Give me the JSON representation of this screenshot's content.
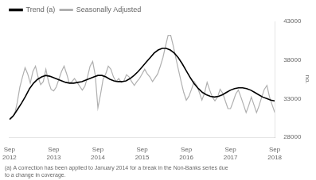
{
  "chart_data": {
    "type": "line",
    "ylabel": "no.",
    "annotations": [
      "(a) A correction has been applied to January 2014 for a break in the Non-Banks series due\nto a change in coverage."
    ],
    "series": [
      {
        "name": "Trend (a)",
        "color": "#000000",
        "x": [
          2012.667,
          2012.7579,
          2012.8488,
          2012.9397,
          2013.0306,
          2013.1215,
          2013.2125,
          2013.3034,
          2013.3943,
          2013.4852,
          2013.5761,
          2013.667,
          2013.7579,
          2013.8488,
          2013.9397,
          2014.0306,
          2014.1215,
          2014.2125,
          2014.3034,
          2014.3943,
          2014.4852,
          2014.5761,
          2014.667,
          2014.7579,
          2014.8488,
          2014.9397,
          2015.0306,
          2015.1215,
          2015.2125,
          2015.3034,
          2015.3943,
          2015.4852,
          2015.5761,
          2015.667,
          2015.7579,
          2015.8488,
          2015.9397,
          2016.0306,
          2016.1215,
          2016.2125,
          2016.3034,
          2016.3943,
          2016.4852,
          2016.5761,
          2016.667,
          2016.7579,
          2016.8488,
          2016.9397,
          2017.0306,
          2017.1215,
          2017.2125,
          2017.3034,
          2017.3943,
          2017.4852,
          2017.5761,
          2017.667,
          2017.7579,
          2017.8488,
          2017.9397,
          2018.0306,
          2018.1215,
          2018.2125,
          2018.3034,
          2018.3943,
          2018.4852,
          2018.5761,
          2018.667
        ],
        "values": [
          30300,
          30800,
          31600,
          32400,
          33300,
          34300,
          35000,
          35500,
          35800,
          36000,
          35900,
          35700,
          35500,
          35300,
          35100,
          35000,
          35000,
          35100,
          35200,
          35400,
          35600,
          35800,
          36000,
          36000,
          35800,
          35500,
          35300,
          35200,
          35200,
          35300,
          35600,
          36000,
          36500,
          37100,
          37700,
          38300,
          38900,
          39300,
          39500,
          39500,
          39300,
          38900,
          38300,
          37500,
          36600,
          35700,
          34900,
          34300,
          33800,
          33500,
          33300,
          33200,
          33300,
          33500,
          33800,
          34100,
          34300,
          34400,
          34400,
          34300,
          34100,
          33800,
          33500,
          33200,
          33000,
          32800,
          32700
        ]
      },
      {
        "name": "Seasonally Adjusted",
        "color": "#b0b0b0",
        "x": [
          2012.667,
          2012.7258,
          2012.7846,
          2012.8435,
          2012.9023,
          2012.9611,
          2013.0199,
          2013.0788,
          2013.1376,
          2013.1964,
          2013.2552,
          2013.3141,
          2013.3729,
          2013.4317,
          2013.4905,
          2013.5494,
          2013.6082,
          2013.667,
          2013.7258,
          2013.7846,
          2013.8435,
          2013.9023,
          2013.9611,
          2014.0199,
          2014.0788,
          2014.1376,
          2014.1964,
          2014.2552,
          2014.3141,
          2014.3729,
          2014.4317,
          2014.4905,
          2014.5494,
          2014.6082,
          2014.667,
          2014.7258,
          2014.7846,
          2014.8435,
          2014.9023,
          2014.9611,
          2015.0199,
          2015.0788,
          2015.1376,
          2015.1964,
          2015.2552,
          2015.3141,
          2015.3729,
          2015.4317,
          2015.4905,
          2015.5494,
          2015.6082,
          2015.667,
          2015.7258,
          2015.7846,
          2015.8435,
          2015.9023,
          2015.9611,
          2016.0199,
          2016.0788,
          2016.1376,
          2016.1964,
          2016.2552,
          2016.3141,
          2016.3729,
          2016.4317,
          2016.4905,
          2016.5494,
          2016.6082,
          2016.667,
          2016.7258,
          2016.7846,
          2016.8435,
          2016.9023,
          2016.9611,
          2017.0199,
          2017.0788,
          2017.1376,
          2017.1964,
          2017.2552,
          2017.3141,
          2017.3729,
          2017.4317,
          2017.4905,
          2017.5494,
          2017.6082,
          2017.667,
          2017.7258,
          2017.7846,
          2017.8435,
          2017.9023,
          2017.9611,
          2018.0199,
          2018.0788,
          2018.1376,
          2018.1964,
          2018.2552,
          2018.3141,
          2018.3729,
          2018.4317,
          2018.4905,
          2018.5494,
          2018.6082,
          2018.667
        ],
        "values": [
          30300,
          30500,
          31000,
          32500,
          34500,
          35800,
          37000,
          36200,
          35000,
          36500,
          37200,
          35800,
          34800,
          35200,
          36800,
          35200,
          34200,
          34000,
          34500,
          35500,
          36500,
          37200,
          36200,
          35000,
          35200,
          35600,
          35100,
          34600,
          34100,
          34600,
          35800,
          37200,
          37800,
          36000,
          31800,
          33500,
          35500,
          36200,
          37200,
          36800,
          35800,
          35200,
          35600,
          35100,
          35300,
          36100,
          35800,
          35200,
          34700,
          35200,
          35600,
          36200,
          36800,
          36200,
          35800,
          35200,
          35700,
          36200,
          37200,
          38300,
          39800,
          41200,
          41200,
          39800,
          38200,
          36700,
          35200,
          33800,
          32800,
          33300,
          34200,
          35200,
          34700,
          33800,
          32800,
          33700,
          35100,
          34100,
          33200,
          32700,
          33200,
          34200,
          33700,
          32700,
          31700,
          31700,
          32600,
          33600,
          34100,
          33200,
          32200,
          31200,
          32100,
          33200,
          32200,
          31200,
          32100,
          33200,
          34200,
          34700,
          33200,
          32200,
          31200
        ]
      }
    ],
    "xlim": [
      2012.667,
      2018.667
    ],
    "xticks": [
      {
        "value": 2012.667,
        "label": "Sep\n2012"
      },
      {
        "value": 2013.667,
        "label": "Sep\n2013"
      },
      {
        "value": 2014.667,
        "label": "Sep\n2014"
      },
      {
        "value": 2015.667,
        "label": "Sep\n2015"
      },
      {
        "value": 2016.667,
        "label": "Sep\n2016"
      },
      {
        "value": 2017.667,
        "label": "Sep\n2017"
      },
      {
        "value": 2018.667,
        "label": "Sep\n2018"
      }
    ],
    "ylim": [
      28000,
      43000
    ],
    "yticks": [
      28000,
      33000,
      38000,
      43000
    ],
    "grid": false,
    "legend": "upper left"
  }
}
